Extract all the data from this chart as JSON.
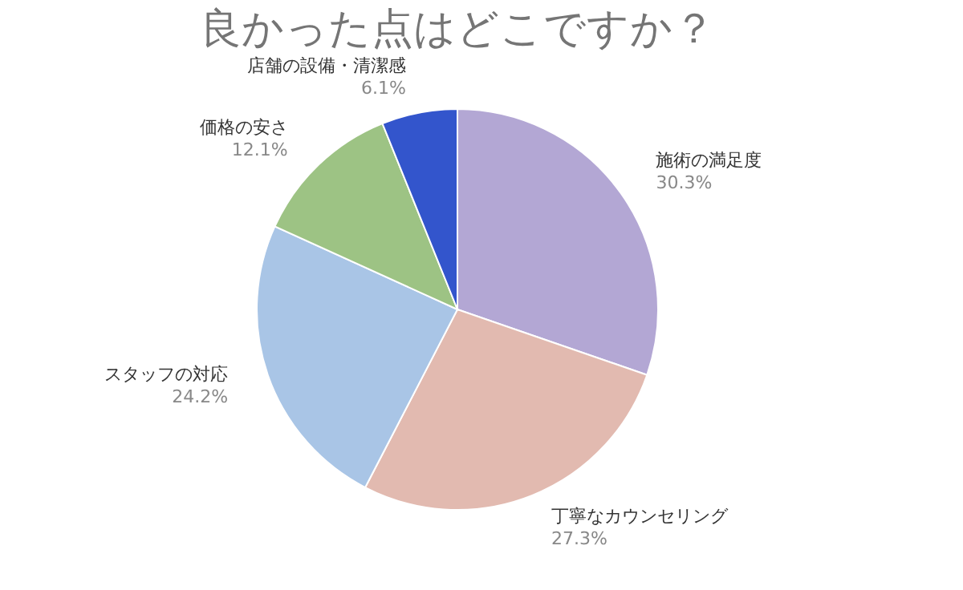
{
  "chart_data": {
    "type": "pie",
    "title": "良かった点はどこですか？",
    "categories": [
      "施術の満足度",
      "丁寧なカウンセリング",
      "スタッフの対応",
      "価格の安さ",
      "店舗の設備・清潔感"
    ],
    "values": [
      30.3,
      27.3,
      24.2,
      12.1,
      6.1
    ],
    "value_labels": [
      "30.3%",
      "27.3%",
      "24.2%",
      "12.1%",
      "6.1%"
    ],
    "colors": [
      "#b3a7d4",
      "#e2bab0",
      "#a9c5e6",
      "#9dc384",
      "#3355cc"
    ],
    "legend": false
  }
}
